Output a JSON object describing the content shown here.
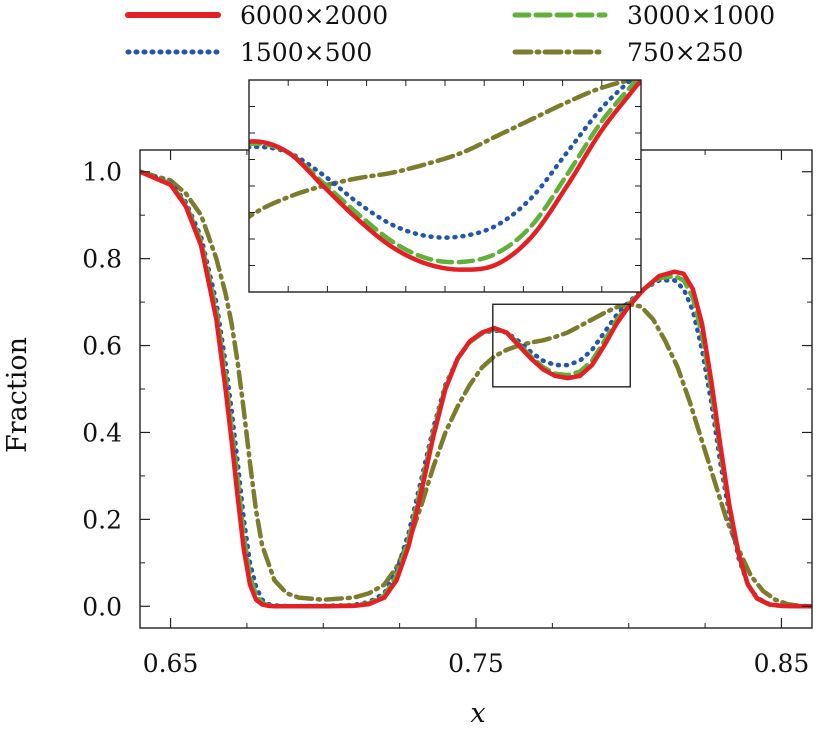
{
  "chart_data": {
    "type": "line",
    "xlabel": "x",
    "ylabel": "Fraction",
    "xlim": [
      0.64,
      0.86
    ],
    "ylim": [
      -0.05,
      1.05
    ],
    "xticks": [
      0.65,
      0.75,
      0.85
    ],
    "xtick_labels": [
      "0.65",
      "0.75",
      "0.85"
    ],
    "yticks": [
      0.0,
      0.2,
      0.4,
      0.6,
      0.8,
      1.0
    ],
    "ytick_labels": [
      "0.0",
      "0.2",
      "0.4",
      "0.6",
      "0.8",
      "1.0"
    ],
    "legend_position": "top",
    "series": [
      {
        "name": "6000×2000",
        "color": "#e32024",
        "dash": "solid",
        "x": [
          0.64,
          0.65,
          0.655,
          0.66,
          0.665,
          0.668,
          0.67,
          0.672,
          0.674,
          0.676,
          0.678,
          0.68,
          0.682,
          0.684,
          0.686,
          0.69,
          0.7,
          0.71,
          0.715,
          0.72,
          0.724,
          0.728,
          0.732,
          0.736,
          0.74,
          0.744,
          0.748,
          0.752,
          0.756,
          0.76,
          0.764,
          0.768,
          0.772,
          0.776,
          0.78,
          0.784,
          0.788,
          0.792,
          0.796,
          0.8,
          0.805,
          0.81,
          0.815,
          0.818,
          0.821,
          0.824,
          0.827,
          0.83,
          0.833,
          0.836,
          0.839,
          0.842,
          0.846,
          0.85,
          0.855,
          0.86
        ],
        "y": [
          1.0,
          0.97,
          0.92,
          0.83,
          0.66,
          0.5,
          0.38,
          0.25,
          0.13,
          0.05,
          0.015,
          0.004,
          0.001,
          0.0,
          0.0,
          0.0,
          0.0,
          0.001,
          0.005,
          0.02,
          0.06,
          0.14,
          0.26,
          0.39,
          0.5,
          0.57,
          0.61,
          0.63,
          0.64,
          0.63,
          0.6,
          0.57,
          0.545,
          0.53,
          0.525,
          0.53,
          0.555,
          0.6,
          0.65,
          0.69,
          0.73,
          0.76,
          0.77,
          0.765,
          0.73,
          0.65,
          0.52,
          0.37,
          0.23,
          0.12,
          0.05,
          0.018,
          0.004,
          0.001,
          0.0,
          0.0
        ]
      },
      {
        "name": "1500×500",
        "color": "#2456a8",
        "dash": "dot",
        "x": [
          0.64,
          0.65,
          0.655,
          0.66,
          0.665,
          0.668,
          0.67,
          0.672,
          0.674,
          0.676,
          0.678,
          0.68,
          0.682,
          0.684,
          0.686,
          0.69,
          0.7,
          0.71,
          0.715,
          0.72,
          0.724,
          0.728,
          0.732,
          0.736,
          0.74,
          0.744,
          0.748,
          0.752,
          0.756,
          0.76,
          0.764,
          0.768,
          0.772,
          0.776,
          0.78,
          0.784,
          0.788,
          0.792,
          0.796,
          0.8,
          0.805,
          0.81,
          0.815,
          0.818,
          0.821,
          0.824,
          0.827,
          0.83,
          0.833,
          0.836,
          0.839,
          0.842,
          0.846,
          0.85,
          0.855,
          0.86
        ],
        "y": [
          1.0,
          0.975,
          0.93,
          0.85,
          0.7,
          0.56,
          0.45,
          0.33,
          0.2,
          0.1,
          0.045,
          0.015,
          0.005,
          0.002,
          0.001,
          0.0,
          0.001,
          0.003,
          0.01,
          0.03,
          0.08,
          0.17,
          0.29,
          0.41,
          0.51,
          0.57,
          0.61,
          0.628,
          0.635,
          0.63,
          0.61,
          0.585,
          0.565,
          0.555,
          0.555,
          0.565,
          0.59,
          0.63,
          0.67,
          0.7,
          0.73,
          0.75,
          0.75,
          0.73,
          0.68,
          0.59,
          0.47,
          0.33,
          0.21,
          0.11,
          0.05,
          0.02,
          0.005,
          0.001,
          0.0,
          0.0
        ]
      },
      {
        "name": "3000×1000",
        "color": "#5fb13b",
        "dash": "dash",
        "x": [
          0.64,
          0.65,
          0.655,
          0.66,
          0.665,
          0.668,
          0.67,
          0.672,
          0.674,
          0.676,
          0.678,
          0.68,
          0.682,
          0.684,
          0.686,
          0.69,
          0.7,
          0.71,
          0.715,
          0.72,
          0.724,
          0.728,
          0.732,
          0.736,
          0.74,
          0.744,
          0.748,
          0.752,
          0.756,
          0.76,
          0.764,
          0.768,
          0.772,
          0.776,
          0.78,
          0.784,
          0.788,
          0.792,
          0.796,
          0.8,
          0.805,
          0.81,
          0.815,
          0.818,
          0.821,
          0.824,
          0.827,
          0.83,
          0.833,
          0.836,
          0.839,
          0.842,
          0.846,
          0.85,
          0.855,
          0.86
        ],
        "y": [
          1.0,
          0.972,
          0.925,
          0.84,
          0.68,
          0.53,
          0.41,
          0.29,
          0.16,
          0.07,
          0.025,
          0.008,
          0.002,
          0.001,
          0.0,
          0.0,
          0.0,
          0.002,
          0.007,
          0.025,
          0.07,
          0.155,
          0.275,
          0.4,
          0.505,
          0.57,
          0.608,
          0.628,
          0.638,
          0.63,
          0.603,
          0.575,
          0.55,
          0.535,
          0.532,
          0.54,
          0.565,
          0.61,
          0.658,
          0.695,
          0.73,
          0.755,
          0.76,
          0.75,
          0.71,
          0.625,
          0.5,
          0.355,
          0.225,
          0.118,
          0.05,
          0.019,
          0.004,
          0.001,
          0.0,
          0.0
        ]
      },
      {
        "name": "750×250",
        "color": "#7c7c2d",
        "dash": "dashdot",
        "x": [
          0.64,
          0.65,
          0.655,
          0.66,
          0.665,
          0.668,
          0.67,
          0.672,
          0.674,
          0.676,
          0.678,
          0.68,
          0.684,
          0.688,
          0.692,
          0.7,
          0.71,
          0.715,
          0.72,
          0.724,
          0.728,
          0.732,
          0.736,
          0.74,
          0.744,
          0.748,
          0.752,
          0.756,
          0.76,
          0.764,
          0.768,
          0.772,
          0.776,
          0.78,
          0.784,
          0.788,
          0.792,
          0.796,
          0.8,
          0.804,
          0.808,
          0.812,
          0.816,
          0.82,
          0.824,
          0.828,
          0.832,
          0.836,
          0.84,
          0.844,
          0.848,
          0.852,
          0.856,
          0.86
        ],
        "y": [
          1.0,
          0.98,
          0.95,
          0.9,
          0.8,
          0.72,
          0.65,
          0.56,
          0.45,
          0.33,
          0.22,
          0.14,
          0.06,
          0.03,
          0.02,
          0.015,
          0.02,
          0.03,
          0.05,
          0.09,
          0.15,
          0.23,
          0.32,
          0.4,
          0.46,
          0.51,
          0.55,
          0.575,
          0.59,
          0.6,
          0.607,
          0.612,
          0.62,
          0.63,
          0.645,
          0.66,
          0.675,
          0.688,
          0.695,
          0.69,
          0.66,
          0.61,
          0.55,
          0.47,
          0.38,
          0.29,
          0.2,
          0.13,
          0.07,
          0.035,
          0.015,
          0.005,
          0.001,
          0.0
        ]
      }
    ],
    "inset": {
      "xlim": [
        0.7555,
        0.8005
      ],
      "ylim": [
        0.505,
        0.695
      ]
    }
  }
}
